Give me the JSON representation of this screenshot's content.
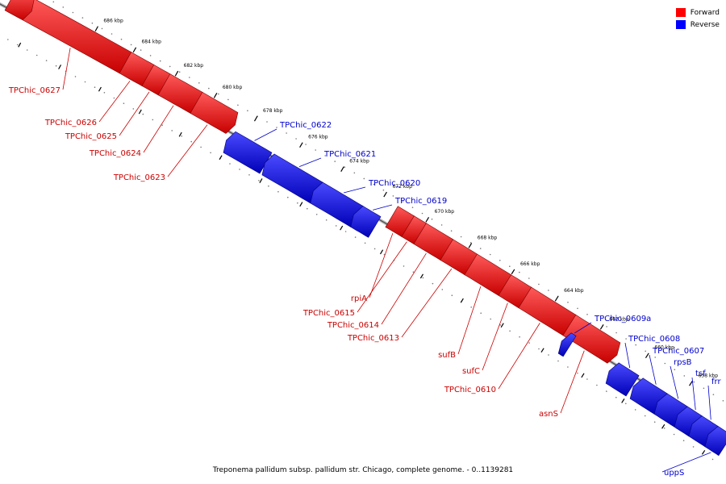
{
  "legend": {
    "forward_label": "Forward",
    "reverse_label": "Reverse",
    "forward_color": "#ff0000",
    "reverse_color": "#0000ff"
  },
  "caption": "Treponema pallidum subsp. pallidum str. Chicago, complete genome. - 0..1139281",
  "ticks": [
    "686 kbp",
    "684 kbp",
    "682 kbp",
    "680 kbp",
    "678 kbp",
    "676 kbp",
    "674 kbp",
    "672 kbp",
    "670 kbp",
    "668 kbp",
    "666 kbp",
    "664 kbp",
    "662 kbp",
    "660 kbp",
    "658 kbp"
  ],
  "genes": [
    {
      "name": "TPChic_0627",
      "strand": "forward"
    },
    {
      "name": "TPChic_0626",
      "strand": "forward"
    },
    {
      "name": "TPChic_0625",
      "strand": "forward"
    },
    {
      "name": "TPChic_0624",
      "strand": "forward"
    },
    {
      "name": "TPChic_0623",
      "strand": "forward"
    },
    {
      "name": "TPChic_0622",
      "strand": "reverse"
    },
    {
      "name": "TPChic_0621",
      "strand": "reverse"
    },
    {
      "name": "TPChic_0620",
      "strand": "reverse"
    },
    {
      "name": "TPChic_0619",
      "strand": "reverse"
    },
    {
      "name": "rpiA",
      "strand": "forward"
    },
    {
      "name": "TPChic_0615",
      "strand": "forward"
    },
    {
      "name": "TPChic_0614",
      "strand": "forward"
    },
    {
      "name": "TPChic_0613",
      "strand": "forward"
    },
    {
      "name": "sufB",
      "strand": "forward"
    },
    {
      "name": "sufC",
      "strand": "forward"
    },
    {
      "name": "TPChic_0610",
      "strand": "forward"
    },
    {
      "name": "asnS",
      "strand": "forward"
    },
    {
      "name": "TPChic_0609a",
      "strand": "reverse"
    },
    {
      "name": "TPChic_0608",
      "strand": "reverse"
    },
    {
      "name": "TPChic_0607",
      "strand": "reverse"
    },
    {
      "name": "rpsB",
      "strand": "reverse"
    },
    {
      "name": "tsf",
      "strand": "reverse"
    },
    {
      "name": "frr",
      "strand": "reverse"
    },
    {
      "name": "uppS",
      "strand": "reverse"
    }
  ]
}
